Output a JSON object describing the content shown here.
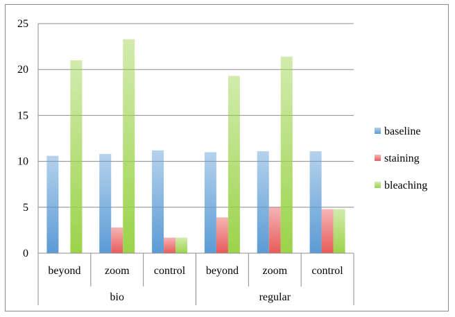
{
  "chart_data": {
    "type": "bar",
    "title": "",
    "xlabel": "",
    "ylabel": "",
    "ylim": [
      0,
      25
    ],
    "yticks": [
      0,
      5,
      10,
      15,
      20,
      25
    ],
    "grid": "horizontal",
    "legend_position": "right",
    "groups": [
      {
        "label": "bio",
        "categories": [
          "beyond",
          "zoom",
          "control"
        ]
      },
      {
        "label": "regular",
        "categories": [
          "beyond",
          "zoom",
          "control"
        ]
      }
    ],
    "categories": [
      "beyond",
      "zoom",
      "control",
      "beyond",
      "zoom",
      "control"
    ],
    "series": [
      {
        "name": "baseline",
        "color": "#5b9bd5",
        "values": [
          10.6,
          10.8,
          11.2,
          11.0,
          11.1,
          11.1
        ]
      },
      {
        "name": "staining",
        "color": "#e85a5a",
        "values": [
          0,
          2.8,
          1.7,
          3.9,
          5.0,
          4.8
        ]
      },
      {
        "name": "bleaching",
        "color": "#9bd34a",
        "values": [
          21.0,
          23.3,
          1.7,
          19.3,
          21.4,
          4.8
        ]
      }
    ]
  }
}
